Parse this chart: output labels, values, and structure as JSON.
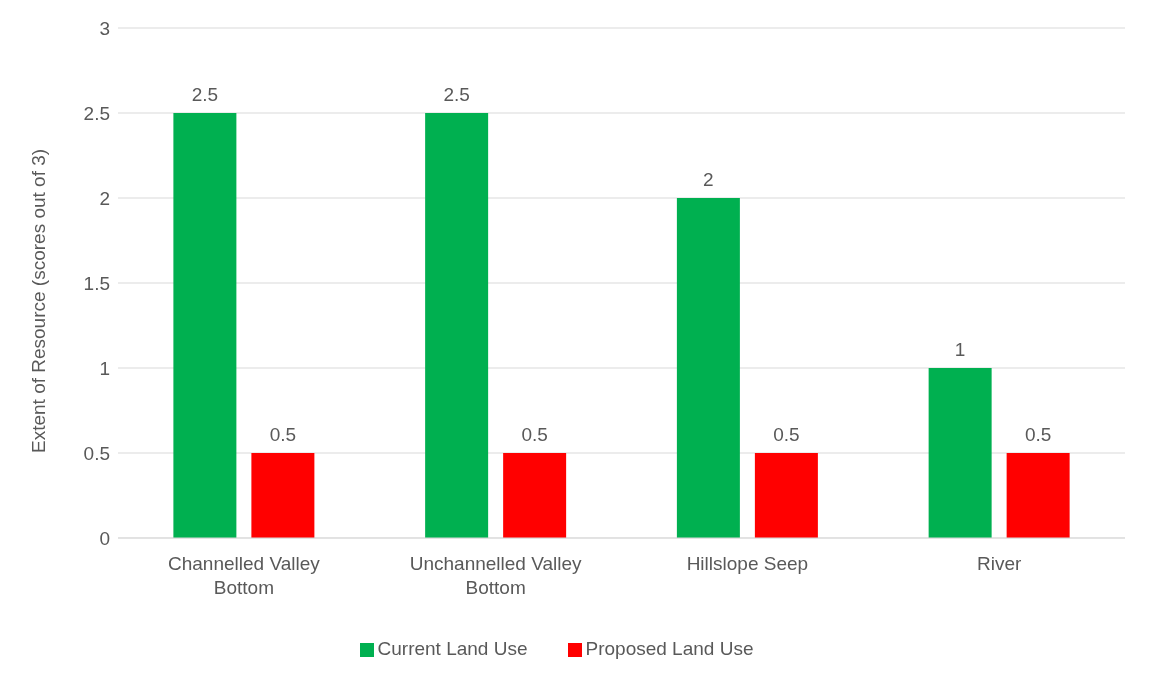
{
  "chart_data": {
    "type": "bar",
    "ylabel": "Extent of Resource (scores out of 3)",
    "categories": [
      "Channelled Valley Bottom",
      "Unchannelled Valley Bottom",
      "Hillslope Seep",
      "River"
    ],
    "series": [
      {
        "name": "Current Land Use",
        "color": "#00b050",
        "values": [
          2.5,
          2.5,
          2,
          1
        ]
      },
      {
        "name": "Proposed Land Use",
        "color": "#ff0000",
        "values": [
          0.5,
          0.5,
          0.5,
          0.5
        ]
      }
    ],
    "ylim": [
      0,
      3
    ],
    "yticks": [
      0,
      0.5,
      1,
      1.5,
      2,
      2.5,
      3
    ],
    "grid": "y",
    "legend": "bottom",
    "data_labels": true
  }
}
